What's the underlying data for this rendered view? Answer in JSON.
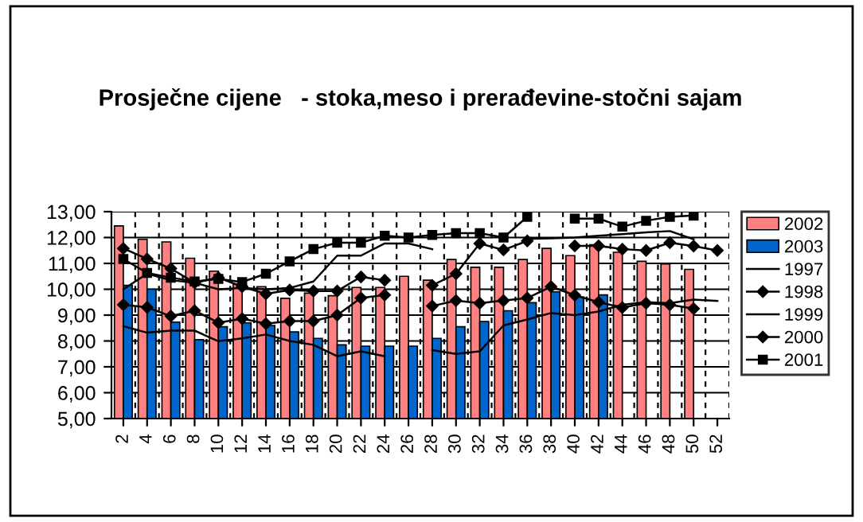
{
  "chart_data": {
    "type": "bar",
    "title": "Prosječne cijene   - stoka,meso i prerađevine-stočni sajam",
    "categories": [
      "2",
      "4",
      "6",
      "8",
      "10",
      "12",
      "14",
      "16",
      "18",
      "20",
      "22",
      "24",
      "26",
      "28",
      "30",
      "32",
      "34",
      "36",
      "38",
      "40",
      "42",
      "44",
      "46",
      "48",
      "50",
      "52"
    ],
    "series": [
      {
        "name": "2002",
        "color": "#ff8080",
        "values": [
          12.45,
          11.93,
          11.83,
          11.2,
          10.7,
          10.2,
          10.1,
          9.65,
          9.85,
          9.75,
          10.07,
          10.07,
          10.5,
          10.35,
          11.15,
          10.85,
          10.85,
          11.15,
          11.58,
          11.3,
          11.72,
          11.43,
          11.08,
          10.98,
          10.77,
          null
        ]
      },
      {
        "name": "2003",
        "color": "#0066cc",
        "values": [
          10.15,
          10.0,
          8.73,
          8.05,
          8.55,
          8.7,
          8.6,
          8.35,
          8.1,
          7.85,
          7.8,
          7.8,
          7.8,
          8.1,
          8.55,
          8.75,
          9.17,
          9.48,
          9.9,
          9.7,
          9.78,
          null,
          null,
          null,
          null,
          null
        ]
      },
      {
        "name": "1997",
        "type": "line",
        "color": "#000000",
        "marker": "none",
        "values": [
          8.57,
          8.32,
          8.4,
          8.4,
          7.99,
          8.1,
          8.25,
          8.0,
          7.85,
          7.41,
          7.6,
          7.41,
          null,
          7.65,
          7.5,
          7.6,
          8.6,
          8.83,
          9.08,
          9.0,
          9.14,
          9.4,
          9.5,
          9.46,
          9.6,
          9.55
        ]
      },
      {
        "name": "1998",
        "type": "line",
        "color": "#000000",
        "marker": "diamond",
        "values": [
          11.58,
          11.17,
          10.8,
          10.25,
          10.45,
          10.1,
          9.82,
          9.97,
          9.93,
          9.93,
          10.48,
          10.35,
          null,
          10.15,
          10.6,
          11.77,
          11.52,
          11.87,
          null,
          11.68,
          11.68,
          11.55,
          11.5,
          11.8,
          11.67,
          11.5
        ]
      },
      {
        "name": "1999",
        "type": "line",
        "color": "#000000",
        "marker": "none",
        "values": [
          10.0,
          10.6,
          10.35,
          10.25,
          10.0,
          10.05,
          10.0,
          10.05,
          10.3,
          11.3,
          11.3,
          11.77,
          11.77,
          11.55,
          null,
          null,
          null,
          11.95,
          11.97,
          12.0,
          12.07,
          12.13,
          12.2,
          12.25,
          11.93,
          null
        ]
      },
      {
        "name": "2000",
        "type": "line",
        "color": "#000000",
        "marker": "diamond",
        "values": [
          9.4,
          9.3,
          8.96,
          9.17,
          8.71,
          8.86,
          8.67,
          8.77,
          8.77,
          9.0,
          9.66,
          9.78,
          null,
          9.35,
          9.56,
          9.46,
          9.56,
          9.66,
          10.1,
          9.77,
          9.5,
          9.29,
          9.46,
          9.4,
          9.25,
          null
        ]
      },
      {
        "name": "2001",
        "type": "line",
        "color": "#000000",
        "marker": "square",
        "values": [
          11.17,
          10.63,
          10.45,
          10.3,
          10.4,
          10.28,
          10.6,
          11.08,
          11.55,
          11.8,
          11.8,
          12.07,
          12.0,
          12.1,
          12.17,
          12.17,
          12.0,
          12.8,
          null,
          12.73,
          12.73,
          12.42,
          12.65,
          12.8,
          12.85,
          null
        ]
      }
    ],
    "ylim": [
      5,
      13
    ],
    "yticks": [
      {
        "value": 5,
        "label": "5,00"
      },
      {
        "value": 6,
        "label": "6,00"
      },
      {
        "value": 7,
        "label": "7,00"
      },
      {
        "value": 8,
        "label": "8,00"
      },
      {
        "value": 9,
        "label": "9,00"
      },
      {
        "value": 10,
        "label": "10,00"
      },
      {
        "value": 11,
        "label": "11,00"
      },
      {
        "value": 12,
        "label": "12,00"
      },
      {
        "value": 13,
        "label": "13,00"
      }
    ],
    "grid": true,
    "legend": "right"
  }
}
